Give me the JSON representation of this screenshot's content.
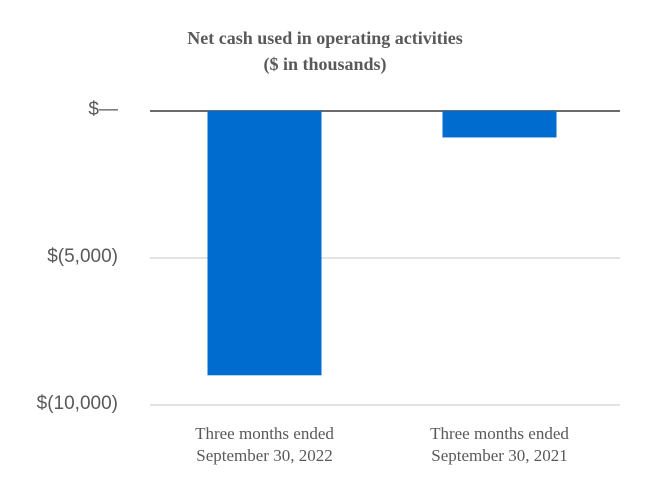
{
  "chart_data": {
    "type": "bar",
    "title": "Net cash used in operating activities",
    "subtitle": "($ in thousands)",
    "categories": [
      [
        "Three months ended",
        "September 30, 2022"
      ],
      [
        "Three months ended",
        "September 30, 2021"
      ]
    ],
    "values": [
      -8990,
      -900
    ],
    "ylim": [
      -10000,
      0
    ],
    "yticks": [
      {
        "value": 0,
        "label": "$—"
      },
      {
        "value": -5000,
        "label": "$(5,000)"
      },
      {
        "value": -10000,
        "label": "$(10,000)"
      }
    ],
    "grid": true,
    "legend": "none",
    "bar_color": "#006ccf",
    "xlabel": "",
    "ylabel": ""
  }
}
